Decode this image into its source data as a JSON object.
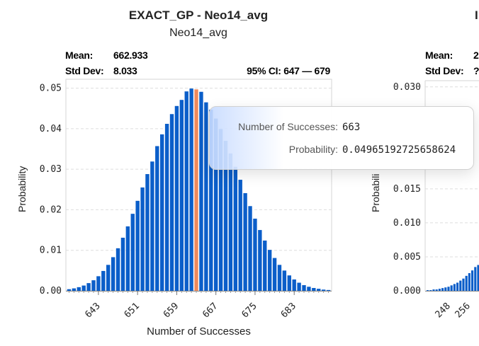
{
  "chart_data": [
    {
      "type": "bar",
      "title": "EXACT_GP - Neo14_avg",
      "subtitle": "Neo14_avg",
      "stats": {
        "mean_label": "Mean:",
        "mean_value": "662.933",
        "std_label": "Std Dev:",
        "std_value": "8.033",
        "ci": "95% CI: 647 — 679"
      },
      "xlabel": "Number of Successes",
      "ylabel": "Probability",
      "x_start": 637,
      "values": [
        0.0004,
        0.0006,
        0.0009,
        0.0013,
        0.0019,
        0.0026,
        0.0036,
        0.0049,
        0.0064,
        0.0083,
        0.0105,
        0.0131,
        0.0159,
        0.019,
        0.0222,
        0.0255,
        0.0288,
        0.0319,
        0.0357,
        0.0386,
        0.0412,
        0.0436,
        0.0456,
        0.0471,
        0.0492,
        0.0499,
        0.0497,
        0.0491,
        0.0465,
        0.0447,
        0.0425,
        0.0399,
        0.037,
        0.0339,
        0.0306,
        0.0274,
        0.0241,
        0.0209,
        0.0178,
        0.015,
        0.0124,
        0.0101,
        0.0081,
        0.0064,
        0.005,
        0.0038,
        0.0028,
        0.002,
        0.0014,
        0.001,
        0.0007,
        0.0005,
        0.0003,
        0.0002
      ],
      "highlight_x": 663,
      "xtick_labels": [
        "643",
        "651",
        "659",
        "667",
        "675",
        "683"
      ],
      "yticks": [
        0,
        0.01,
        0.02,
        0.03,
        0.04,
        0.05
      ],
      "ytick_labels": [
        "0.00",
        "0.01",
        "0.02",
        "0.03",
        "0.04",
        "0.05"
      ],
      "ylim": [
        0,
        0.0515
      ],
      "colors": {
        "bar": "#0b5ec9",
        "highlight": "#f0895b",
        "grid": "#dddddd"
      }
    },
    {
      "type": "bar",
      "title": "I",
      "stats": {
        "mean_label": "Mean:",
        "mean_value": "2",
        "std_label": "Std Dev:",
        "std_value": "?"
      },
      "ylabel": "Probabili",
      "values": [
        0.0001,
        0.0001,
        0.0002,
        0.0002,
        0.0003,
        0.0004,
        0.0005,
        0.0006,
        0.0008,
        0.001,
        0.0012,
        0.0015,
        0.0018,
        0.0022,
        0.0026,
        0.003,
        0.0035,
        0.0038
      ],
      "xtick_labels": [
        "248",
        "256"
      ],
      "ytick_labels": [
        "0.000",
        "0.005",
        "0.010",
        "0.015",
        "0.030"
      ],
      "yticks": [
        0,
        0.005,
        0.01,
        0.015,
        0.03
      ],
      "ylim": [
        0,
        0.0305
      ]
    }
  ],
  "tooltip": {
    "label1": "Number of Successes:",
    "value1": "663",
    "label2": "Probability:",
    "value2": "0.04965192725658624"
  }
}
